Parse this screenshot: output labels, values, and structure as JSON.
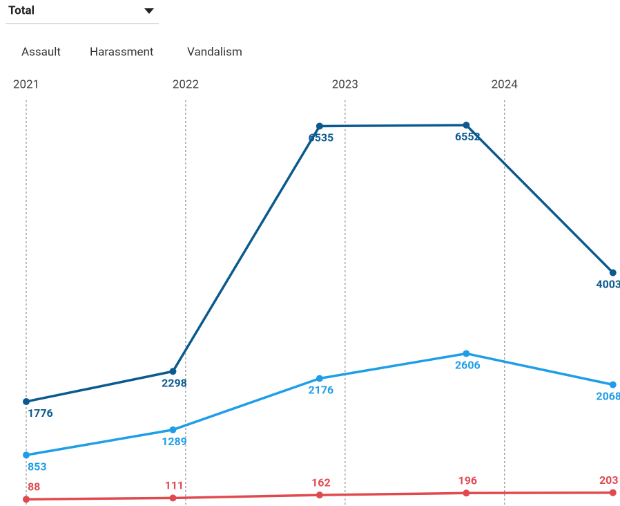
{
  "dropdown": {
    "label": "Total"
  },
  "chart_data": {
    "type": "line",
    "x": [
      2021,
      2021.92,
      2022.84,
      2023.76,
      2024.68
    ],
    "xlim": [
      2021,
      2024.72
    ],
    "xticks": [
      2021,
      2022,
      2023,
      2024
    ],
    "ylim": [
      0,
      7000
    ],
    "grid": true,
    "series": [
      {
        "name": "Assault",
        "color": "#0b5a8f",
        "values": [
          1776,
          2298,
          6535,
          6552,
          4003
        ]
      },
      {
        "name": "Harassment",
        "color": "#1f9ee8",
        "values": [
          853,
          1289,
          2176,
          2606,
          2068
        ]
      },
      {
        "name": "Vandalism",
        "color": "#e04a4f",
        "values": [
          88,
          111,
          162,
          196,
          203
        ]
      }
    ]
  }
}
